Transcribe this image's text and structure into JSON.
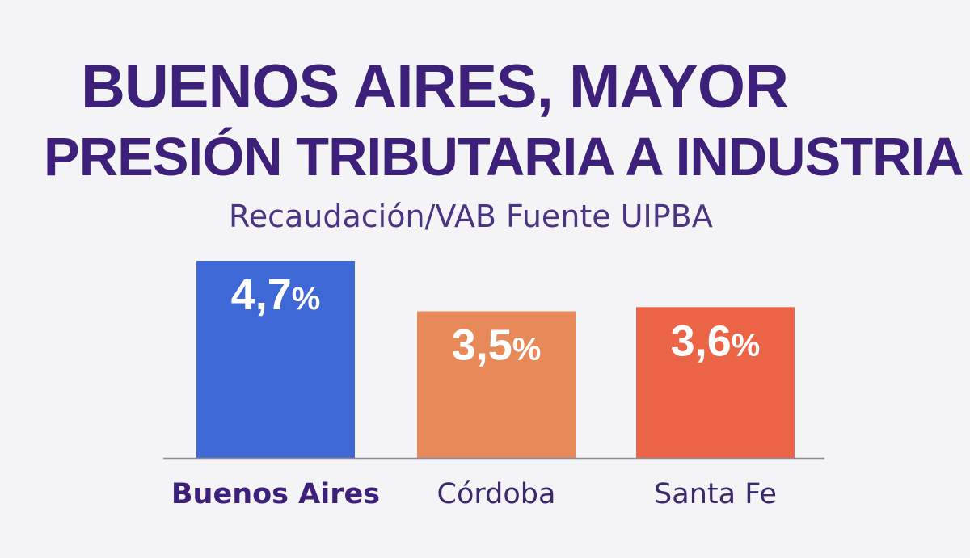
{
  "title": {
    "line1": "BUENOS AIRES, MAYOR",
    "line2": "PRESIÓN TRIBUTARIA A INDUSTRIA"
  },
  "subtitle": "Recaudación/VAB Fuente UIPBA",
  "colors": {
    "title": "#3d2079",
    "buenos_aires": "#3d68d6",
    "cordoba": "#e8895a",
    "santa_fe": "#ec6446",
    "axis": "#8e8c98"
  },
  "chart_data": {
    "type": "bar",
    "title": "BUENOS AIRES, MAYOR PRESIÓN TRIBUTARIA A INDUSTRIA",
    "subtitle": "Recaudación/VAB Fuente UIPBA",
    "categories": [
      "Buenos Aires",
      "Córdoba",
      "Santa Fe"
    ],
    "values": [
      4.7,
      3.5,
      3.6
    ],
    "value_labels": [
      {
        "number": "4,7",
        "unit": "%"
      },
      {
        "number": "3,5",
        "unit": "%"
      },
      {
        "number": "3,6",
        "unit": "%"
      }
    ],
    "highlighted_category": "Buenos Aires",
    "xlabel": "",
    "ylabel": "",
    "ylim": [
      0,
      4.7
    ],
    "grid": false,
    "legend": "none"
  }
}
